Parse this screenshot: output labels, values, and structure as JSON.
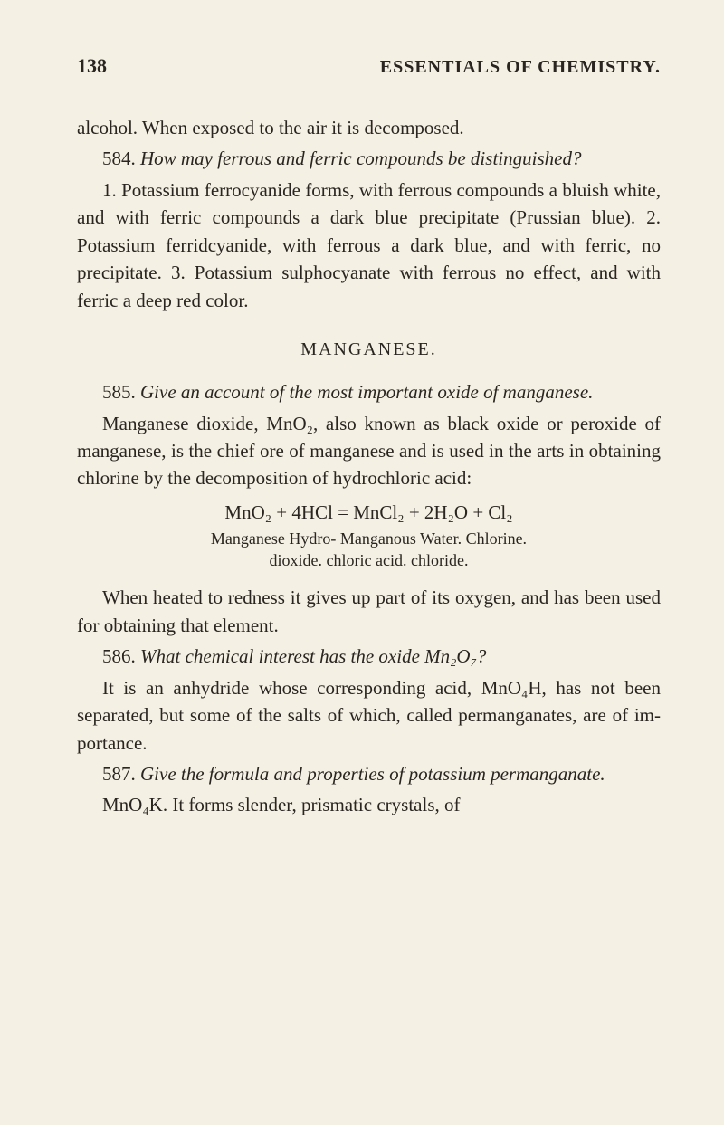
{
  "page": {
    "number": "138",
    "book_title": "ESSENTIALS OF CHEMISTRY.",
    "background_color": "#f5f0e4",
    "text_color": "#2a2520",
    "body_font_size": 21,
    "header_font_size": 22
  },
  "content": {
    "para1_part1": "alcohol. When exposed to the air it is decom­posed.",
    "q584_num": "584.",
    "q584_text": "How may ferrous and ferric compounds be distinguished?",
    "q584_answer": "1. Potassium ferrocyanide forms, with ferrous compounds a bluish white, and with ferric com­pounds a dark blue precipitate (Prussian blue). 2. Potassium ferridcyanide, with ferrous a dark blue, and with ferric, no precipitate. 3. Potassium sul­phocyanate with ferrous no effect, and with ferric a deep red color.",
    "section_heading": "MANGANESE.",
    "q585_num": "585.",
    "q585_text": "Give an account of the most important oxide of manganese.",
    "q585_answer": "Manganese dioxide, MnO₂, also known as black oxide or peroxide of manganese, is the chief ore of manganese and is used in the arts in obtaining chlorine by the decomposition of hydrochloric acid:",
    "equation": "MnO₂ + 4HCl = MnCl₂ + 2H₂O + Cl₂",
    "equation_labels_line1": "Manganese   Hydro-   Manganous   Water.   Chlorine.",
    "equation_labels_line2": "dioxide.   chloric acid.   chloride.",
    "q585_para2": "When heated to redness it gives up part of its oxygen, and has been used for obtaining that element.",
    "q586_num": "586.",
    "q586_text": "What chemical interest has the oxide Mn₂O₇?",
    "q586_answer": "It is an anhydride whose corresponding acid, MnO₄H, has not been separated, but some of the salts of which, called permanganates, are of im­portance.",
    "q587_num": "587.",
    "q587_text": "Give the formula and properties of potassium permanganate.",
    "q587_answer": "MnO₄K. It forms slender, prismatic crystals, of"
  }
}
